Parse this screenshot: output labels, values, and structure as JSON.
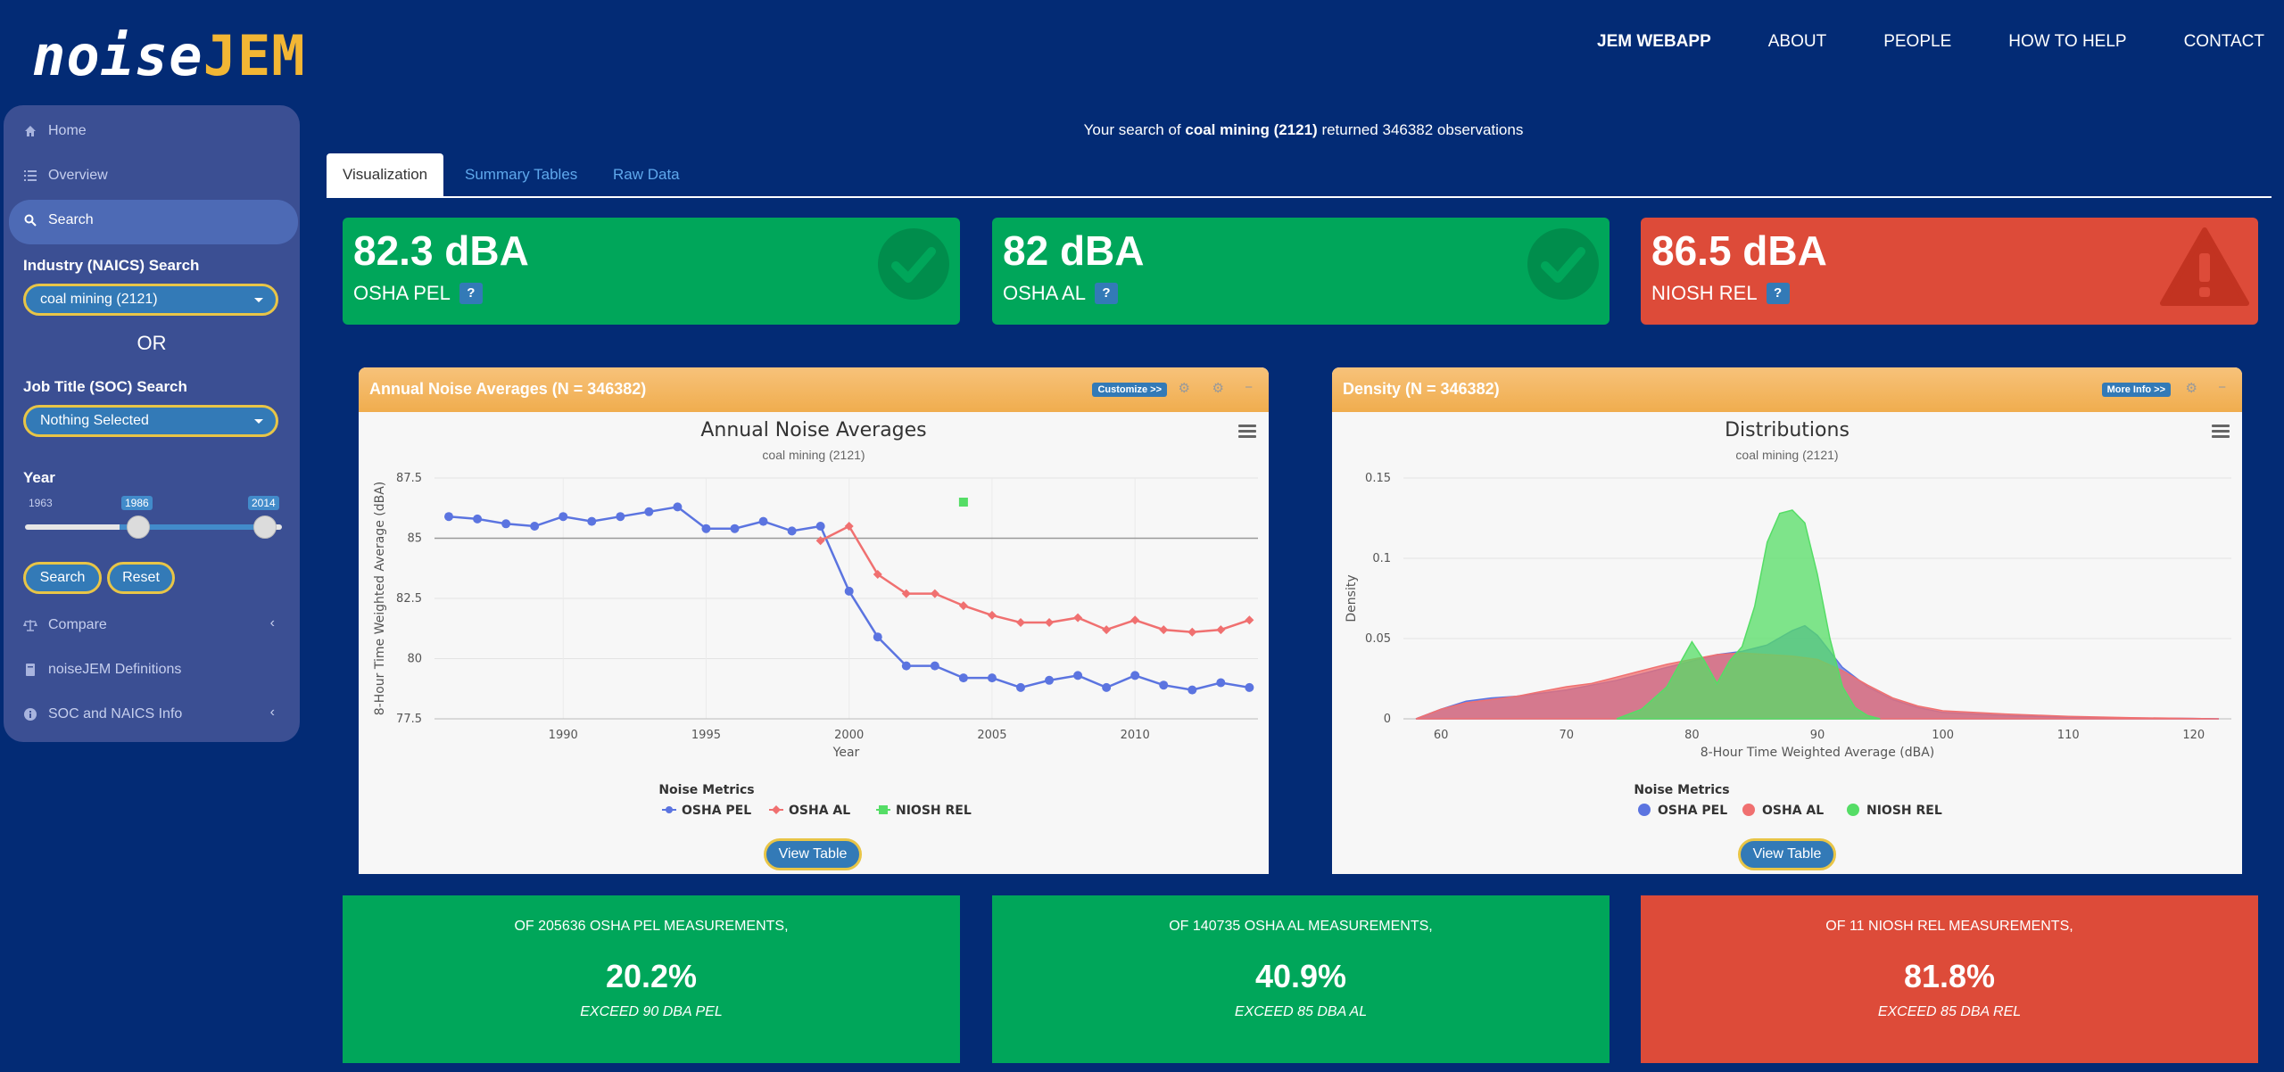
{
  "header": {
    "logo_part1": "noise",
    "logo_part2": "JEM",
    "nav": [
      "JEM WEBAPP",
      "ABOUT",
      "PEOPLE",
      "HOW TO HELP",
      "CONTACT"
    ]
  },
  "sidebar": {
    "items": [
      {
        "label": "Home",
        "icon": "home-icon"
      },
      {
        "label": "Overview",
        "icon": "list-icon"
      },
      {
        "label": "Search",
        "icon": "search-icon"
      },
      {
        "label": "Compare",
        "icon": "balance-icon"
      },
      {
        "label": "noiseJEM Definitions",
        "icon": "book-icon"
      },
      {
        "label": "SOC and NAICS Info",
        "icon": "info-icon"
      }
    ],
    "industry_label": "Industry (NAICS) Search",
    "industry_value": "coal mining (2121)",
    "or_label": "OR",
    "job_label": "Job Title (SOC) Search",
    "job_value": "Nothing Selected",
    "year_label": "Year",
    "year_min": "1963",
    "year_from": "1986",
    "year_to": "2014",
    "year_from_fraction": 0.45,
    "year_to_fraction": 1.0,
    "search_btn": "Search",
    "reset_btn": "Reset"
  },
  "search_msg": {
    "prefix": "Your search of ",
    "term": "coal mining (2121)",
    "suffix": " returned 346382 observations"
  },
  "tabs": [
    "Visualization",
    "Summary Tables",
    "Raw Data"
  ],
  "kpis": [
    {
      "value": "82.3 dBA",
      "label": "OSHA PEL",
      "help": "?",
      "color": "#00a65a",
      "icon": "check-icon"
    },
    {
      "value": "82 dBA",
      "label": "OSHA AL",
      "help": "?",
      "color": "#00a65a",
      "icon": "check-icon"
    },
    {
      "value": "86.5 dBA",
      "label": "NIOSH REL",
      "help": "?",
      "color": "#dd4b39",
      "icon": "warning-icon"
    }
  ],
  "panel_left": {
    "title": "Annual Noise Averages (N = 346382)",
    "button": "Customize >>",
    "chart_title": "Annual Noise Averages",
    "chart_subtitle": "coal mining (2121)",
    "legend_title": "Noise Metrics",
    "view_table": "View Table"
  },
  "panel_right": {
    "title": "Density (N = 346382)",
    "button": "More Info >>",
    "chart_title": "Distributions",
    "chart_subtitle": "coal mining (2121)",
    "legend_title": "Noise Metrics",
    "view_table": "View Table"
  },
  "stats": [
    {
      "line1": "OF 205636 OSHA PEL MEASUREMENTS,",
      "pct": "20.2%",
      "line3": "EXCEED 90 DBA PEL"
    },
    {
      "line1": "OF 140735 OSHA AL MEASUREMENTS,",
      "pct": "40.9%",
      "line3": "EXCEED 85 DBA AL"
    },
    {
      "line1": "OF 11 NIOSH REL MEASUREMENTS,",
      "pct": "81.8%",
      "line3": "EXCEED 85 DBA REL"
    }
  ],
  "chart_data": [
    {
      "type": "line",
      "title": "Annual Noise Averages",
      "subtitle": "coal mining (2121)",
      "xlabel": "Year",
      "ylabel": "8-Hour Time Weighted Average (dBA)",
      "xlim": [
        1985.5,
        2014.3
      ],
      "ylim": [
        77.5,
        87.5
      ],
      "xticks": [
        1990,
        1995,
        2000,
        2005,
        2010
      ],
      "yticks": [
        77.5,
        80,
        82.5,
        85,
        87.5
      ],
      "reference_line": 85,
      "legend": "bottom-center",
      "series": [
        {
          "name": "OSHA PEL",
          "color": "#5b74e0",
          "marker": "circle",
          "x": [
            1986,
            1987,
            1988,
            1989,
            1990,
            1991,
            1992,
            1993,
            1994,
            1995,
            1996,
            1997,
            1998,
            1999,
            2000,
            2001,
            2002,
            2003,
            2004,
            2005,
            2006,
            2007,
            2008,
            2009,
            2010,
            2011,
            2012,
            2013,
            2014
          ],
          "y": [
            85.9,
            85.8,
            85.6,
            85.5,
            85.9,
            85.7,
            85.9,
            86.1,
            86.3,
            85.4,
            85.4,
            85.7,
            85.3,
            85.5,
            82.8,
            80.9,
            79.7,
            79.7,
            79.2,
            79.2,
            78.8,
            79.1,
            79.3,
            78.8,
            79.3,
            78.9,
            78.7,
            79.0,
            78.8
          ]
        },
        {
          "name": "OSHA AL",
          "color": "#f07070",
          "marker": "diamond",
          "x": [
            1999,
            2000,
            2001,
            2002,
            2003,
            2004,
            2005,
            2006,
            2007,
            2008,
            2009,
            2010,
            2011,
            2012,
            2013,
            2014
          ],
          "y": [
            84.9,
            85.5,
            83.5,
            82.7,
            82.7,
            82.2,
            81.8,
            81.5,
            81.5,
            81.7,
            81.2,
            81.6,
            81.2,
            81.1,
            81.2,
            81.6
          ]
        },
        {
          "name": "NIOSH REL",
          "color": "#55dd66",
          "marker": "square",
          "x": [
            2004
          ],
          "y": [
            86.5
          ]
        }
      ]
    },
    {
      "type": "area",
      "title": "Distributions",
      "subtitle": "coal mining (2121)",
      "xlabel": "8-Hour Time Weighted Average (dBA)",
      "ylabel": "Density",
      "xlim": [
        57,
        123
      ],
      "ylim": [
        0,
        0.15
      ],
      "xticks": [
        60,
        70,
        80,
        90,
        100,
        110,
        120
      ],
      "yticks": [
        0,
        0.05,
        0.1,
        0.15
      ],
      "legend": "bottom-center",
      "series": [
        {
          "name": "OSHA PEL",
          "color": "#5b74e0",
          "x": [
            58,
            60,
            62,
            64,
            66,
            68,
            70,
            72,
            74,
            76,
            78,
            80,
            82,
            84,
            86,
            88,
            89,
            90,
            92,
            94,
            96,
            98,
            100,
            105,
            110,
            115,
            120,
            122
          ],
          "y": [
            0,
            0.006,
            0.011,
            0.013,
            0.014,
            0.016,
            0.018,
            0.021,
            0.024,
            0.028,
            0.032,
            0.036,
            0.04,
            0.042,
            0.046,
            0.055,
            0.058,
            0.052,
            0.032,
            0.02,
            0.012,
            0.007,
            0.004,
            0.002,
            0.001,
            0.0005,
            0.0002,
            0
          ]
        },
        {
          "name": "OSHA AL",
          "color": "#f07070",
          "x": [
            58,
            60,
            62,
            64,
            66,
            68,
            70,
            72,
            74,
            76,
            78,
            80,
            82,
            84,
            86,
            88,
            90,
            92,
            94,
            96,
            98,
            100,
            105,
            110,
            115,
            120,
            122
          ],
          "y": [
            0,
            0.006,
            0.01,
            0.012,
            0.014,
            0.017,
            0.02,
            0.022,
            0.026,
            0.03,
            0.034,
            0.037,
            0.04,
            0.041,
            0.04,
            0.039,
            0.037,
            0.03,
            0.021,
            0.013,
            0.008,
            0.005,
            0.003,
            0.0015,
            0.0007,
            0.0002,
            0
          ]
        },
        {
          "name": "NIOSH REL",
          "color": "#55dd66",
          "x": [
            74,
            76,
            78,
            79,
            80,
            81,
            82,
            83,
            84,
            85,
            86,
            87,
            88,
            89,
            90,
            91,
            92,
            93,
            94,
            95
          ],
          "y": [
            0,
            0.006,
            0.02,
            0.034,
            0.048,
            0.036,
            0.022,
            0.036,
            0.045,
            0.07,
            0.11,
            0.128,
            0.13,
            0.122,
            0.09,
            0.05,
            0.02,
            0.007,
            0.002,
            0
          ]
        }
      ]
    }
  ]
}
